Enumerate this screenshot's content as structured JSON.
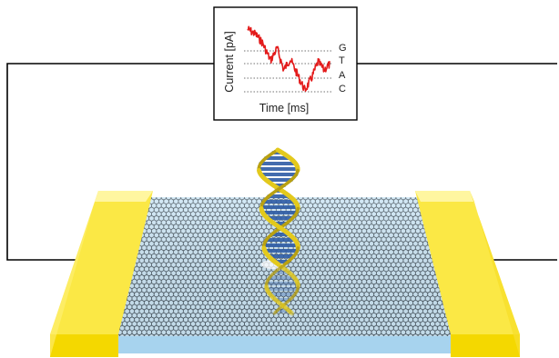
{
  "inset": {
    "y_label": "Current [pA]",
    "x_label": "Time [ms]",
    "levels": [
      "G",
      "T",
      "A",
      "C"
    ]
  },
  "chart_data": {
    "type": "line",
    "title": "",
    "xlabel": "Time [ms]",
    "ylabel": "Current [pA]",
    "ytick_labels": [
      "G",
      "T",
      "A",
      "C"
    ],
    "series": [
      {
        "color": "#e31b1b",
        "trace": [
          {
            "x": 0.0,
            "level": 4.6
          },
          {
            "x": 0.1,
            "level": 4.2
          },
          {
            "x": 0.18,
            "level": 3.6
          },
          {
            "x": 0.28,
            "level": 2.3
          },
          {
            "x": 0.36,
            "level": 3.2
          },
          {
            "x": 0.44,
            "level": 1.6
          },
          {
            "x": 0.52,
            "level": 2.4
          },
          {
            "x": 0.62,
            "level": 1.1
          },
          {
            "x": 0.7,
            "level": 0.1
          },
          {
            "x": 0.78,
            "level": 1.0
          },
          {
            "x": 0.86,
            "level": 2.2
          },
          {
            "x": 0.93,
            "level": 1.6
          },
          {
            "x": 1.0,
            "level": 2.0
          }
        ]
      }
    ]
  },
  "colors": {
    "trace": "#e31b1b",
    "electrode": "#fbe845",
    "graphene_lattice": "#1f2a33",
    "substrate": "#a7d3ee",
    "dna_backbone": "#e3c91d",
    "dna_bases": "#2f5da6",
    "wire": "#000000"
  }
}
